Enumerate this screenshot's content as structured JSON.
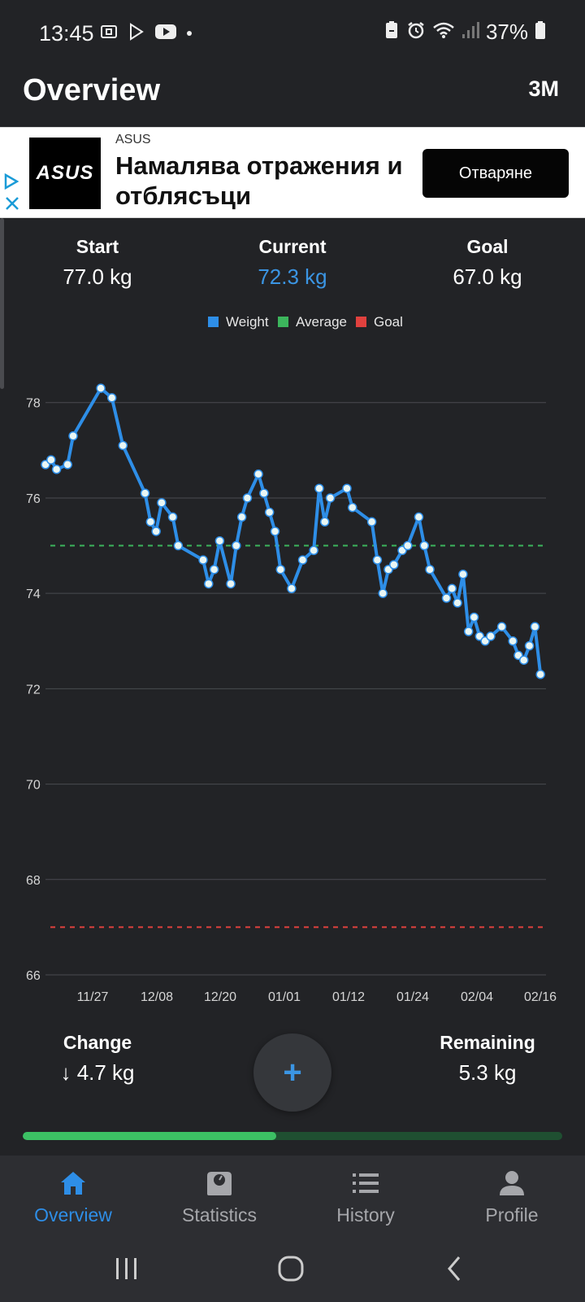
{
  "status_bar": {
    "time": "13:45",
    "battery_text": "37%",
    "left_icons": [
      "screenshot-icon",
      "play-store-icon",
      "youtube-icon",
      "dot-icon"
    ],
    "right_icons": [
      "battery-saver-icon",
      "alarm-icon",
      "wifi-icon",
      "signal-icon",
      "battery-icon"
    ]
  },
  "app_bar": {
    "title": "Overview",
    "range": "3M"
  },
  "ad": {
    "logo_text": "ASUS",
    "advertiser": "ASUS",
    "headline": "Намалява отражения и отблясъци",
    "cta": "Отваряне"
  },
  "stats": {
    "start": {
      "label": "Start",
      "value": "77.0 kg"
    },
    "current": {
      "label": "Current",
      "value": "72.3 kg"
    },
    "goal": {
      "label": "Goal",
      "value": "67.0 kg"
    }
  },
  "colors": {
    "weight": "#2e8ee7",
    "average": "#3cb55c",
    "goal": "#e0413e",
    "accent": "#3b95e3",
    "progress": "#3cc064"
  },
  "chart_data": {
    "type": "line",
    "legend": [
      "Weight",
      "Average",
      "Goal"
    ],
    "legend_position": "top-center",
    "x_tick_labels": [
      "11/27",
      "12/08",
      "12/20",
      "01/01",
      "01/12",
      "01/24",
      "02/04",
      "02/16"
    ],
    "y_tick_labels": [
      "78",
      "76",
      "74",
      "72",
      "70",
      "68",
      "66"
    ],
    "ylim": [
      66,
      78.9
    ],
    "grid": true,
    "average": 75.0,
    "goal": 67.0,
    "points": [
      {
        "x": -7.0,
        "y": 76.7
      },
      {
        "x": -6.0,
        "y": 76.8
      },
      {
        "x": -5.0,
        "y": 76.6
      },
      {
        "x": -3.0,
        "y": 76.7
      },
      {
        "x": -2.0,
        "y": 77.3
      },
      {
        "x": 3.0,
        "y": 78.3
      },
      {
        "x": 5.0,
        "y": 78.1
      },
      {
        "x": 7.0,
        "y": 77.1
      },
      {
        "x": 11.0,
        "y": 76.1
      },
      {
        "x": 12.0,
        "y": 75.5
      },
      {
        "x": 13.0,
        "y": 75.3
      },
      {
        "x": 14.0,
        "y": 75.9
      },
      {
        "x": 16.0,
        "y": 75.6
      },
      {
        "x": 17.0,
        "y": 75.0
      },
      {
        "x": 21.5,
        "y": 74.7
      },
      {
        "x": 22.5,
        "y": 74.2
      },
      {
        "x": 23.5,
        "y": 74.5
      },
      {
        "x": 24.5,
        "y": 75.1
      },
      {
        "x": 26.5,
        "y": 74.2
      },
      {
        "x": 27.5,
        "y": 75.0
      },
      {
        "x": 28.5,
        "y": 75.6
      },
      {
        "x": 29.5,
        "y": 76.0
      },
      {
        "x": 31.5,
        "y": 76.5
      },
      {
        "x": 32.5,
        "y": 76.1
      },
      {
        "x": 33.5,
        "y": 75.7
      },
      {
        "x": 34.5,
        "y": 75.3
      },
      {
        "x": 35.5,
        "y": 74.5
      },
      {
        "x": 37.5,
        "y": 74.1
      },
      {
        "x": 39.5,
        "y": 74.7
      },
      {
        "x": 41.5,
        "y": 74.9
      },
      {
        "x": 42.5,
        "y": 76.2
      },
      {
        "x": 43.5,
        "y": 75.5
      },
      {
        "x": 44.5,
        "y": 76.0
      },
      {
        "x": 47.5,
        "y": 76.2
      },
      {
        "x": 48.5,
        "y": 75.8
      },
      {
        "x": 52.0,
        "y": 75.5
      },
      {
        "x": 53.0,
        "y": 74.7
      },
      {
        "x": 54.0,
        "y": 74.0
      },
      {
        "x": 55.0,
        "y": 74.5
      },
      {
        "x": 56.0,
        "y": 74.6
      },
      {
        "x": 57.5,
        "y": 74.9
      },
      {
        "x": 58.5,
        "y": 75.0
      },
      {
        "x": 60.5,
        "y": 75.6
      },
      {
        "x": 61.5,
        "y": 75.0
      },
      {
        "x": 62.5,
        "y": 74.5
      },
      {
        "x": 65.5,
        "y": 73.9
      },
      {
        "x": 66.5,
        "y": 74.1
      },
      {
        "x": 67.5,
        "y": 73.8
      },
      {
        "x": 68.5,
        "y": 74.4
      },
      {
        "x": 69.5,
        "y": 73.2
      },
      {
        "x": 70.5,
        "y": 73.5
      },
      {
        "x": 71.5,
        "y": 73.1
      },
      {
        "x": 72.5,
        "y": 73.0
      },
      {
        "x": 73.5,
        "y": 73.1
      },
      {
        "x": 75.5,
        "y": 73.3
      },
      {
        "x": 77.5,
        "y": 73.0
      },
      {
        "x": 78.5,
        "y": 72.7
      },
      {
        "x": 79.5,
        "y": 72.6
      },
      {
        "x": 80.5,
        "y": 72.9
      },
      {
        "x": 81.5,
        "y": 73.3
      },
      {
        "x": 82.5,
        "y": 72.3
      }
    ]
  },
  "summary": {
    "change": {
      "label": "Change",
      "value": "↓ 4.7 kg"
    },
    "remaining": {
      "label": "Remaining",
      "value": "5.3 kg"
    },
    "progress_fraction": 0.47
  },
  "fab": {
    "label": "+"
  },
  "nav": {
    "items": [
      {
        "label": "Overview",
        "icon": "home-icon",
        "active": true
      },
      {
        "label": "Statistics",
        "icon": "scale-icon",
        "active": false
      },
      {
        "label": "History",
        "icon": "list-icon",
        "active": false
      },
      {
        "label": "Profile",
        "icon": "person-icon",
        "active": false
      }
    ]
  },
  "system_nav": [
    "recents-icon",
    "home-circle-icon",
    "back-icon"
  ]
}
